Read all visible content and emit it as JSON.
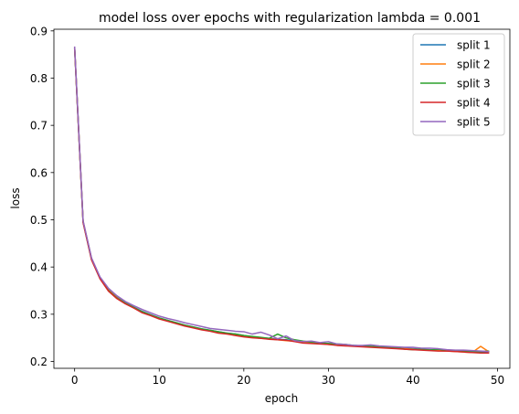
{
  "chart_data": {
    "type": "line",
    "title": "model loss over epochs with regularization lambda = 0.001",
    "xlabel": "epoch",
    "ylabel": "loss",
    "xlim": [
      -2.45,
      51.45
    ],
    "ylim": [
      0.1855,
      0.9035
    ],
    "xticks": [
      0,
      10,
      20,
      30,
      40,
      50
    ],
    "yticks": [
      0.2,
      0.3,
      0.4,
      0.5,
      0.6,
      0.7,
      0.8,
      0.9
    ],
    "grid": false,
    "legend_position": "top-right",
    "x": [
      0,
      1,
      2,
      3,
      4,
      5,
      6,
      7,
      8,
      9,
      10,
      11,
      12,
      13,
      14,
      15,
      16,
      17,
      18,
      19,
      20,
      21,
      22,
      23,
      24,
      25,
      26,
      27,
      28,
      29,
      30,
      31,
      32,
      33,
      34,
      35,
      36,
      37,
      38,
      39,
      40,
      41,
      42,
      43,
      44,
      45,
      46,
      47,
      48,
      49
    ],
    "series": [
      {
        "name": "split 1",
        "color": "#1f77b4",
        "values": [
          0.865,
          0.496,
          0.417,
          0.376,
          0.352,
          0.336,
          0.324,
          0.315,
          0.306,
          0.299,
          0.292,
          0.287,
          0.282,
          0.277,
          0.273,
          0.269,
          0.266,
          0.263,
          0.26,
          0.258,
          0.255,
          0.252,
          0.25,
          0.249,
          0.247,
          0.246,
          0.244,
          0.242,
          0.241,
          0.239,
          0.238,
          0.236,
          0.235,
          0.234,
          0.233,
          0.232,
          0.231,
          0.23,
          0.229,
          0.228,
          0.227,
          0.226,
          0.225,
          0.224,
          0.223,
          0.222,
          0.222,
          0.221,
          0.22,
          0.219
        ]
      },
      {
        "name": "split 2",
        "color": "#ff7f0e",
        "values": [
          0.866,
          0.497,
          0.418,
          0.377,
          0.351,
          0.335,
          0.323,
          0.314,
          0.305,
          0.298,
          0.291,
          0.286,
          0.281,
          0.276,
          0.272,
          0.268,
          0.265,
          0.261,
          0.259,
          0.256,
          0.253,
          0.251,
          0.249,
          0.248,
          0.246,
          0.244,
          0.243,
          0.24,
          0.24,
          0.238,
          0.236,
          0.235,
          0.234,
          0.233,
          0.232,
          0.231,
          0.23,
          0.229,
          0.228,
          0.227,
          0.226,
          0.225,
          0.224,
          0.223,
          0.222,
          0.221,
          0.22,
          0.219,
          0.232,
          0.22
        ]
      },
      {
        "name": "split 3",
        "color": "#2ca02c",
        "values": [
          0.864,
          0.495,
          0.416,
          0.376,
          0.35,
          0.334,
          0.323,
          0.314,
          0.305,
          0.298,
          0.292,
          0.287,
          0.282,
          0.277,
          0.273,
          0.269,
          0.266,
          0.263,
          0.26,
          0.258,
          0.255,
          0.253,
          0.251,
          0.249,
          0.258,
          0.25,
          0.246,
          0.243,
          0.241,
          0.239,
          0.238,
          0.237,
          0.236,
          0.234,
          0.233,
          0.232,
          0.231,
          0.23,
          0.229,
          0.226,
          0.225,
          0.226,
          0.224,
          0.226,
          0.223,
          0.222,
          0.221,
          0.22,
          0.221,
          0.222
        ]
      },
      {
        "name": "split 4",
        "color": "#d62728",
        "values": [
          0.863,
          0.494,
          0.415,
          0.375,
          0.349,
          0.333,
          0.322,
          0.313,
          0.303,
          0.297,
          0.29,
          0.285,
          0.28,
          0.275,
          0.271,
          0.267,
          0.264,
          0.26,
          0.258,
          0.255,
          0.252,
          0.25,
          0.249,
          0.247,
          0.246,
          0.245,
          0.242,
          0.239,
          0.238,
          0.237,
          0.236,
          0.234,
          0.233,
          0.232,
          0.231,
          0.23,
          0.229,
          0.228,
          0.227,
          0.226,
          0.225,
          0.224,
          0.223,
          0.222,
          0.222,
          0.221,
          0.22,
          0.219,
          0.218,
          0.218
        ]
      },
      {
        "name": "split 5",
        "color": "#9467bd",
        "values": [
          0.867,
          0.498,
          0.419,
          0.379,
          0.355,
          0.339,
          0.327,
          0.318,
          0.31,
          0.303,
          0.296,
          0.291,
          0.287,
          0.282,
          0.278,
          0.274,
          0.27,
          0.268,
          0.266,
          0.264,
          0.263,
          0.258,
          0.262,
          0.256,
          0.248,
          0.254,
          0.244,
          0.242,
          0.243,
          0.24,
          0.242,
          0.237,
          0.236,
          0.234,
          0.234,
          0.235,
          0.233,
          0.232,
          0.231,
          0.23,
          0.23,
          0.228,
          0.228,
          0.227,
          0.225,
          0.224,
          0.224,
          0.223,
          0.222,
          0.221
        ]
      }
    ]
  }
}
